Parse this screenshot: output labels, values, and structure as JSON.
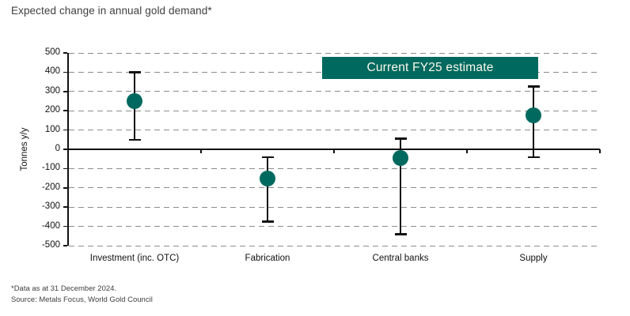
{
  "title": "Expected change in annual gold demand*",
  "chart_data": {
    "type": "scatter",
    "subtype": "point-estimate-with-error-bars",
    "title": "Expected change in annual gold demand*",
    "xlabel": "",
    "ylabel": "Tonnes y/y",
    "ylim": [
      -500,
      500
    ],
    "ytick_step": 100,
    "grid": "horizontal-dashed",
    "legend": {
      "label": "Current FY25 estimate",
      "position": "top-right-inside"
    },
    "categories": [
      "Investment (inc. OTC)",
      "Fabrication",
      "Central banks",
      "Supply"
    ],
    "series": [
      {
        "name": "Current FY25 estimate",
        "points": [
          {
            "category": "Investment (inc. OTC)",
            "estimate": 250,
            "high": 400,
            "low": 50
          },
          {
            "category": "Fabrication",
            "estimate": -150,
            "high": -40,
            "low": -375
          },
          {
            "category": "Central banks",
            "estimate": -45,
            "high": 55,
            "low": -440
          },
          {
            "category": "Supply",
            "estimate": 175,
            "high": 325,
            "low": -40
          }
        ]
      }
    ]
  },
  "footer": {
    "footnote": "*Data as at 31 December 2024.",
    "source": "Source: Metals Focus, World Gold Council"
  },
  "colors": {
    "accent_teal": "#00695F",
    "legend_text": "#FCF9EC",
    "title_text": "#404040",
    "axis_text": "#111111",
    "gridline_gray": "#8C8C8C",
    "error_bar_black": "#111111"
  }
}
